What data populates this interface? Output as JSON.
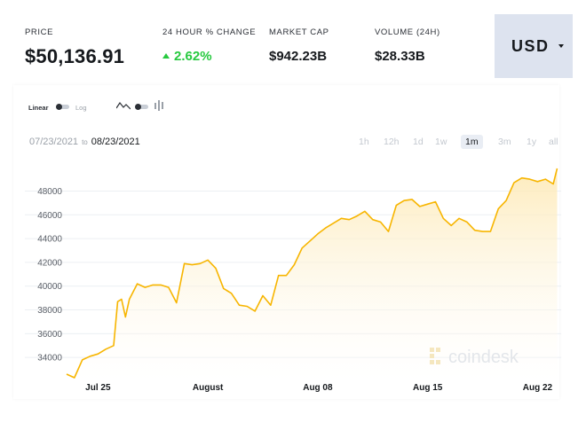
{
  "stats": {
    "price": {
      "label": "PRICE",
      "value": "$50,136.91"
    },
    "change": {
      "label": "24 HOUR % CHANGE",
      "value": "2.62%"
    },
    "market_cap": {
      "label": "MARKET CAP",
      "value": "$942.23B"
    },
    "volume": {
      "label": "VOLUME (24H)",
      "value": "$28.33B"
    }
  },
  "currency": {
    "selected": "USD"
  },
  "toolbar": {
    "scale_linear": "Linear",
    "scale_log": "Log",
    "chart_type_line_icon": "line-chart-icon",
    "chart_type_bars_icon": "candlestick-icon"
  },
  "date_range": {
    "from": "07/23/2021",
    "to_label": "to",
    "to": "08/23/2021"
  },
  "ranges": [
    "1h",
    "12h",
    "1d",
    "1w",
    "1m",
    "3m",
    "1y",
    "all"
  ],
  "active_range": "1m",
  "watermark": "coindesk",
  "colors": {
    "line": "#f7b500",
    "fill": "#fdf3d8",
    "positive": "#27c93f",
    "currency_bg": "#dde3ef"
  },
  "chart_data": {
    "type": "area",
    "x_ticks": [
      {
        "label": "Jul 25",
        "day": 25,
        "month": 7
      },
      {
        "label": "August",
        "day": 1,
        "month": 8
      },
      {
        "label": "Aug 08",
        "day": 8,
        "month": 8
      },
      {
        "label": "Aug 15",
        "day": 15,
        "month": 8
      },
      {
        "label": "Aug 22",
        "day": 22,
        "month": 8
      }
    ],
    "y_ticks": [
      34000,
      36000,
      38000,
      40000,
      42000,
      44000,
      46000,
      48000
    ],
    "y_tick_labels": [
      "$34000",
      "$36000",
      "$38000",
      "$40000",
      "$42000",
      "$44000",
      "$46000",
      "$48000"
    ],
    "ylim": [
      32000,
      50200
    ],
    "xlim": [
      "07/23/2021",
      "08/23/2021"
    ],
    "grid": "horizontal",
    "x": [
      "07/23 00:00",
      "07/23 12:00",
      "07/24 00:00",
      "07/24 12:00",
      "07/25 00:00",
      "07/25 12:00",
      "07/26 00:00",
      "07/26 06:00",
      "07/26 12:00",
      "07/26 18:00",
      "07/27 00:00",
      "07/27 12:00",
      "07/28 00:00",
      "07/28 12:00",
      "07/29 00:00",
      "07/29 12:00",
      "07/30 00:00",
      "07/30 12:00",
      "07/31 00:00",
      "07/31 12:00",
      "08/01 00:00",
      "08/01 12:00",
      "08/02 00:00",
      "08/02 12:00",
      "08/03 00:00",
      "08/03 12:00",
      "08/04 00:00",
      "08/04 12:00",
      "08/05 00:00",
      "08/05 12:00",
      "08/06 00:00",
      "08/06 12:00",
      "08/07 00:00",
      "08/07 12:00",
      "08/08 00:00",
      "08/08 12:00",
      "08/09 00:00",
      "08/09 12:00",
      "08/10 00:00",
      "08/10 12:00",
      "08/11 00:00",
      "08/11 12:00",
      "08/12 00:00",
      "08/12 12:00",
      "08/13 00:00",
      "08/13 12:00",
      "08/14 00:00",
      "08/14 12:00",
      "08/15 00:00",
      "08/15 12:00",
      "08/16 00:00",
      "08/16 12:00",
      "08/17 00:00",
      "08/17 12:00",
      "08/18 00:00",
      "08/18 12:00",
      "08/19 00:00",
      "08/19 12:00",
      "08/20 00:00",
      "08/20 12:00",
      "08/21 00:00",
      "08/21 12:00",
      "08/22 00:00",
      "08/22 12:00",
      "08/23 00:00",
      "08/23 06:00"
    ],
    "y": [
      32600,
      32300,
      33800,
      34100,
      34300,
      34700,
      35000,
      38700,
      38900,
      37400,
      38900,
      40200,
      39900,
      40100,
      40100,
      39900,
      38600,
      41900,
      41800,
      41900,
      42200,
      41500,
      39800,
      39400,
      38400,
      38300,
      37900,
      39200,
      38400,
      40900,
      40900,
      41800,
      43200,
      43800,
      44400,
      44900,
      45300,
      45700,
      45600,
      45900,
      46300,
      45600,
      45400,
      44600,
      46800,
      47200,
      47300,
      46700,
      46900,
      47100,
      45700,
      45100,
      45700,
      45400,
      44700,
      44600,
      44600,
      46500,
      47200,
      48700,
      49100,
      49000,
      48800,
      49000,
      48600,
      49900
    ]
  }
}
